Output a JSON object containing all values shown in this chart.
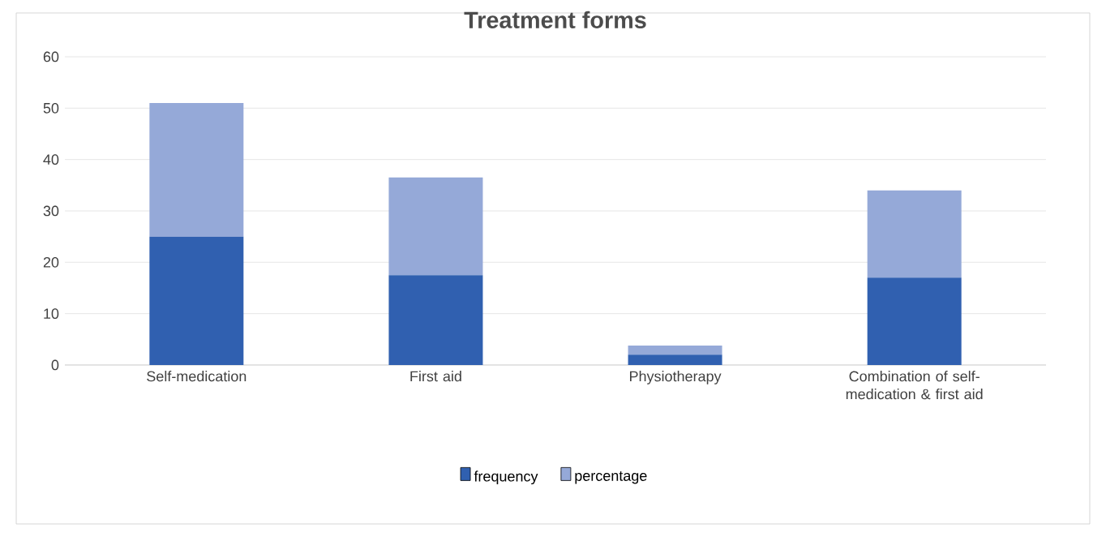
{
  "chart_data": {
    "type": "bar",
    "title": "Treatment forms",
    "stacked": true,
    "categories": [
      "Self-medication",
      "First aid",
      "Physiotherapy",
      "Combination of self-medication & first aid"
    ],
    "series": [
      {
        "name": "frequency",
        "color": "#3060b0",
        "values": [
          25,
          17.5,
          2,
          17
        ]
      },
      {
        "name": "percentage",
        "color": "#95a9d8",
        "values": [
          26,
          19,
          1.8,
          17
        ]
      }
    ],
    "ylim": [
      0,
      60
    ],
    "yticks": [
      0,
      10,
      20,
      30,
      40,
      50,
      60
    ],
    "grid": "y",
    "legend": "bottom"
  }
}
